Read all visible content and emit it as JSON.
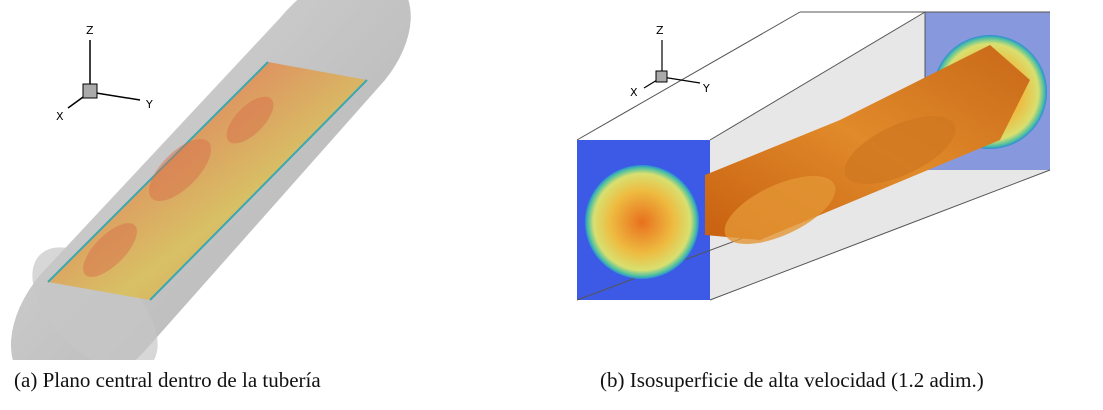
{
  "figure": {
    "panels": [
      {
        "label": "(a)",
        "caption": "Plano central dentro de la tubería",
        "axes": {
          "x": "X",
          "y": "Y",
          "z": "Z"
        }
      },
      {
        "label": "(b)",
        "caption": "Isosuperficie de alta velocidad (1.2 adim.)",
        "axes": {
          "x": "X",
          "y": "Y",
          "z": "Z"
        }
      }
    ]
  }
}
